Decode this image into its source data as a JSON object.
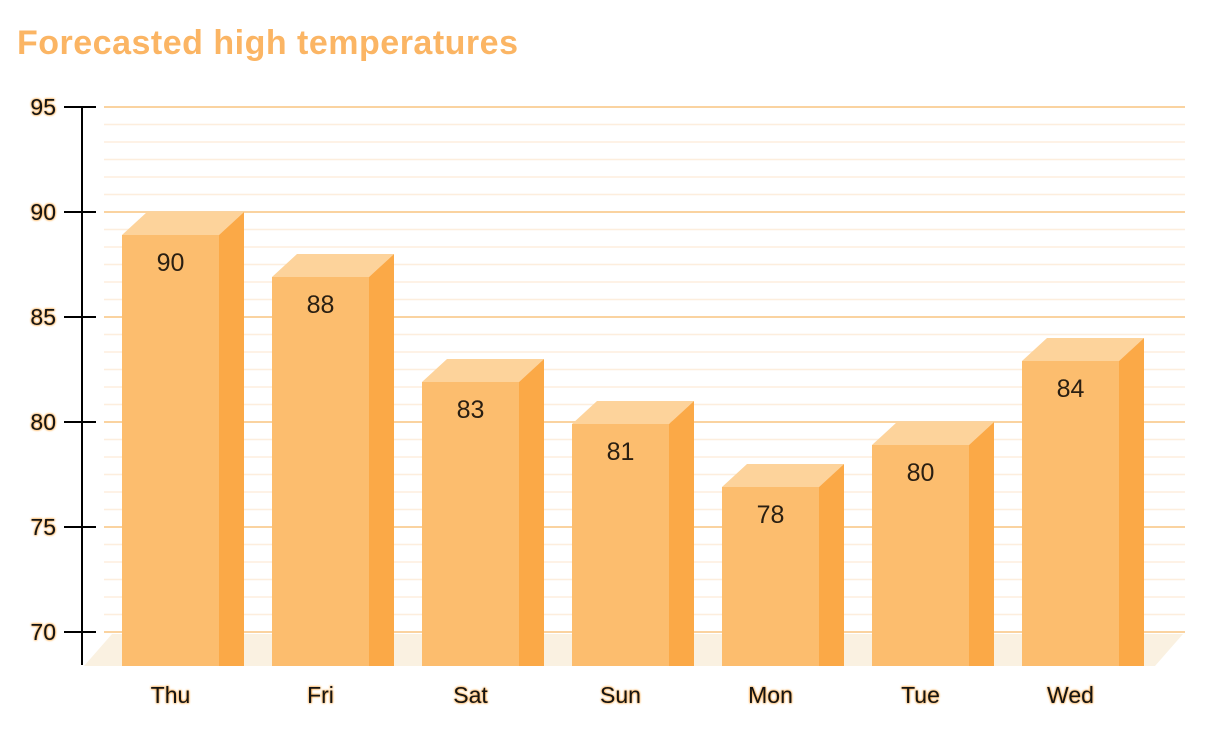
{
  "chart_data": {
    "type": "bar",
    "style": "3d-column",
    "title": "Forecasted high temperatures",
    "categories": [
      "Thu",
      "Fri",
      "Sat",
      "Sun",
      "Mon",
      "Tue",
      "Wed"
    ],
    "values": [
      90,
      88,
      83,
      81,
      78,
      80,
      84
    ],
    "xlabel": "",
    "ylabel": "",
    "ylim": [
      70,
      95
    ],
    "yticks": [
      70,
      75,
      80,
      85,
      90,
      95
    ],
    "minor_gridlines_per_major_interval": 5,
    "grid": true,
    "legend": false,
    "bar_value_labels_shown": true,
    "colors": {
      "background": "#ffffff",
      "title": "#fbb564",
      "bar_front": "#fcbd6e",
      "bar_top": "#fdd39b",
      "bar_side": "#fba947",
      "floor": "#faf1e1",
      "grid_major": "#fad3a0",
      "grid_minor": "#fdeedd",
      "axis": "#000000",
      "label_text": "#141414",
      "label_halo": "#f9a43c",
      "value_text": "#2a1f12"
    }
  }
}
